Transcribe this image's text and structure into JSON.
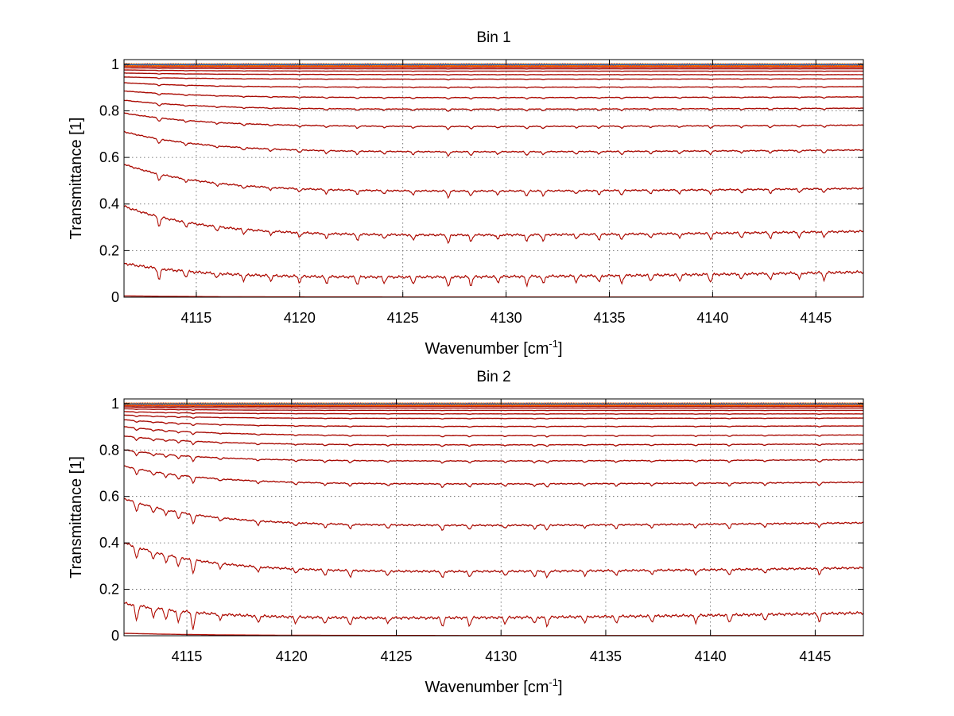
{
  "chart_data": [
    {
      "type": "line",
      "title": "Bin 1",
      "xlabel": "Wavenumber [cm",
      "xlabel_sup": "-1",
      "xlabel_end": "]",
      "ylabel": "Transmittance [1]",
      "xlim": [
        4111.5,
        4147.3
      ],
      "ylim": [
        0,
        1.02
      ],
      "xticks": [
        4115,
        4120,
        4125,
        4130,
        4135,
        4140,
        4145
      ],
      "yticks": [
        0,
        0.2,
        0.4,
        0.6,
        0.8,
        1
      ],
      "ytick_labels": [
        "0",
        "0.2",
        "0.4",
        "0.6",
        "0.8",
        "1"
      ],
      "grid": true,
      "series_colors": [
        "#8B0000",
        "#cc2200",
        "#ff4400",
        "#ff8800",
        "#ffcc00",
        "#22bbcc",
        "#1144cc"
      ],
      "line_color": "#8B0000",
      "curve_levels": [
        0.0,
        0.08,
        0.26,
        0.45,
        0.62,
        0.73,
        0.805,
        0.855,
        0.9,
        0.935,
        0.955,
        0.97,
        0.98,
        0.987,
        0.992,
        0.996,
        1.0
      ],
      "curve_start_levels": [
        0.005,
        0.145,
        0.39,
        0.57,
        0.71,
        0.79,
        0.845,
        0.885,
        0.92,
        0.945,
        0.962,
        0.975,
        0.984,
        0.99,
        0.994,
        0.997,
        1.0
      ],
      "absorption_lines": [
        4113.2,
        4114.5,
        4116.0,
        4117.3,
        4118.6,
        4120.0,
        4121.3,
        4122.8,
        4124.1,
        4125.5,
        4127.2,
        4128.3,
        4129.6,
        4131.0,
        4131.8,
        4133.4,
        4134.5,
        4135.6,
        4137.0,
        4138.4,
        4139.9,
        4141.4,
        4142.8,
        4144.2,
        4145.4
      ],
      "absorption_depths": [
        0.06,
        0.03,
        0.025,
        0.03,
        0.025,
        0.03,
        0.035,
        0.04,
        0.03,
        0.035,
        0.055,
        0.045,
        0.03,
        0.045,
        0.04,
        0.03,
        0.035,
        0.04,
        0.03,
        0.03,
        0.04,
        0.03,
        0.035,
        0.03,
        0.035
      ]
    },
    {
      "type": "line",
      "title": "Bin 2",
      "xlabel": "Wavenumber [cm",
      "xlabel_sup": "-1",
      "xlabel_end": "]",
      "ylabel": "Transmittance [1]",
      "xlim": [
        4112.0,
        4147.3
      ],
      "ylim": [
        0,
        1.02
      ],
      "xticks": [
        4115,
        4120,
        4125,
        4130,
        4135,
        4140,
        4145
      ],
      "yticks": [
        0,
        0.2,
        0.4,
        0.6,
        0.8,
        1
      ],
      "ytick_labels": [
        "0",
        "0.2",
        "0.4",
        "0.6",
        "0.8",
        "1"
      ],
      "grid": true,
      "series_colors": [
        "#8B0000",
        "#cc2200",
        "#ff4400",
        "#ff8800",
        "#ffcc00",
        "#22bbcc",
        "#1144cc"
      ],
      "line_color": "#8B0000",
      "curve_levels": [
        0.0,
        0.07,
        0.27,
        0.47,
        0.65,
        0.75,
        0.82,
        0.86,
        0.9,
        0.935,
        0.955,
        0.97,
        0.98,
        0.987,
        0.992,
        0.996,
        1.0
      ],
      "curve_start_levels": [
        0.01,
        0.14,
        0.4,
        0.59,
        0.73,
        0.8,
        0.86,
        0.9,
        0.93,
        0.95,
        0.965,
        0.977,
        0.985,
        0.99,
        0.994,
        0.997,
        1.0
      ],
      "absorption_lines": [
        4112.6,
        4113.4,
        4114.0,
        4114.6,
        4115.3,
        4116.6,
        4118.4,
        4120.2,
        4121.6,
        4122.8,
        4124.6,
        4127.2,
        4128.5,
        4130.2,
        4131.6,
        4132.2,
        4134.0,
        4135.5,
        4137.2,
        4139.3,
        4140.9,
        4142.6,
        4145.2
      ],
      "absorption_depths": [
        0.08,
        0.05,
        0.05,
        0.06,
        0.09,
        0.03,
        0.035,
        0.03,
        0.035,
        0.04,
        0.03,
        0.045,
        0.04,
        0.03,
        0.035,
        0.045,
        0.03,
        0.035,
        0.03,
        0.035,
        0.04,
        0.03,
        0.04
      ]
    }
  ]
}
